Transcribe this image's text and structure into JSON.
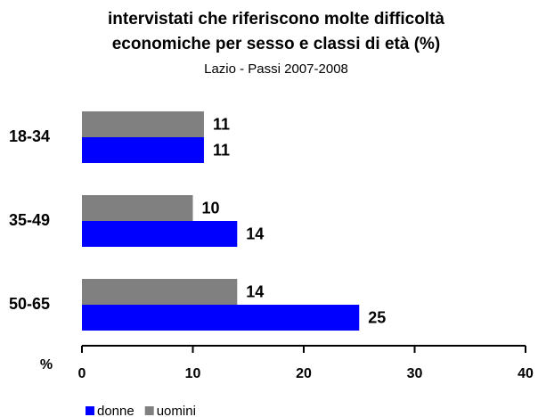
{
  "chart_data": {
    "type": "barh",
    "title": [
      "intervistati che riferiscono molte difficoltà",
      "economiche per sesso e classi di età (%)"
    ],
    "subtitle": "Lazio - Passi 2007-2008",
    "xlabel": "%",
    "categories": [
      "18-34",
      "35-49",
      "50-65"
    ],
    "series": [
      {
        "name": "uomini",
        "color": "#808080",
        "values": [
          11,
          10,
          14
        ]
      },
      {
        "name": "donne",
        "color": "#0000ff",
        "values": [
          11,
          14,
          25
        ]
      }
    ],
    "xlim": [
      0,
      40
    ],
    "xticks": [
      0,
      10,
      20,
      30,
      40
    ],
    "legend": "bottom"
  }
}
